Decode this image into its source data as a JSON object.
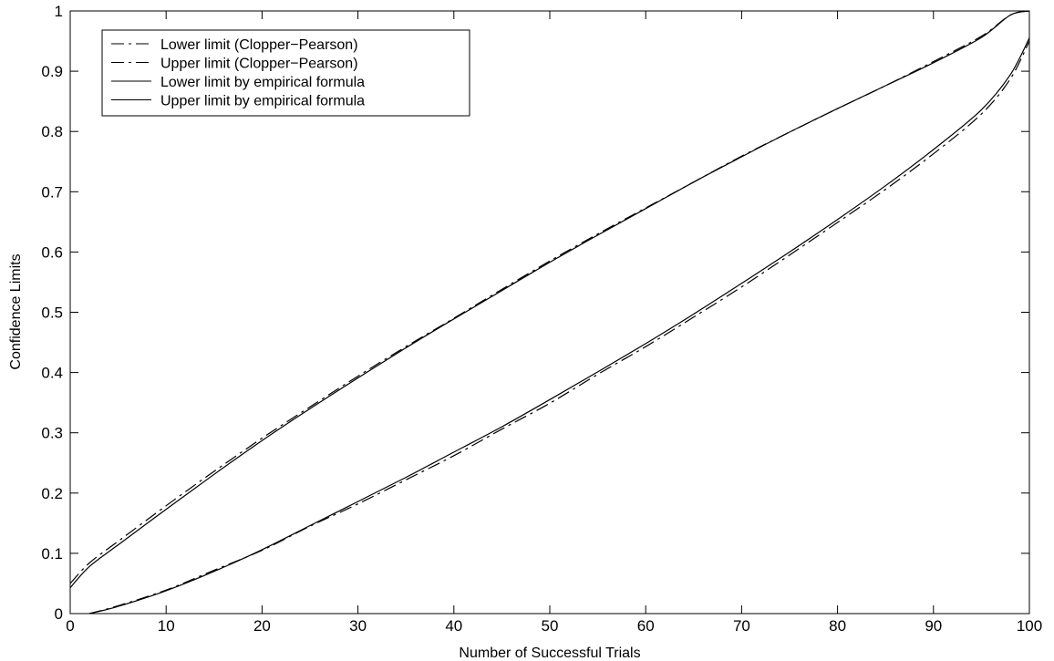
{
  "chart_data": {
    "type": "line",
    "title": "",
    "xlabel": "Number of Successful Trials",
    "ylabel": "Confidence Limits",
    "xlim": [
      0,
      100
    ],
    "ylim": [
      0,
      1
    ],
    "xticks": [
      0,
      10,
      20,
      30,
      40,
      50,
      60,
      70,
      80,
      90,
      100
    ],
    "yticks": [
      0,
      0.1,
      0.2,
      0.3,
      0.4,
      0.5,
      0.6,
      0.7,
      0.8,
      0.9,
      1
    ],
    "ytick_labels": [
      "0",
      "0.1",
      "0.2",
      "0.3",
      "0.4",
      "0.5",
      "0.6",
      "0.7",
      "0.8",
      "0.9",
      "1"
    ],
    "grid": false,
    "legend_position": "top-left",
    "x": [
      0,
      2,
      5,
      10,
      15,
      20,
      25,
      30,
      35,
      40,
      45,
      50,
      55,
      60,
      65,
      70,
      75,
      80,
      85,
      90,
      95,
      98,
      100
    ],
    "series": [
      {
        "name": "Lower limit (Clopper−Pearson)",
        "style": "dashdot",
        "color": "#000000",
        "values": [
          null,
          0.0,
          0.013,
          0.039,
          0.072,
          0.105,
          0.145,
          0.182,
          0.222,
          0.262,
          0.306,
          0.349,
          0.397,
          0.443,
          0.492,
          0.542,
          0.595,
          0.649,
          0.704,
          0.763,
          0.829,
          0.887,
          0.95
        ]
      },
      {
        "name": "Upper limit (Clopper−Pearson)",
        "style": "dashdot",
        "color": "#000000",
        "values": [
          0.05,
          0.084,
          0.12,
          0.179,
          0.236,
          0.291,
          0.343,
          0.394,
          0.443,
          0.49,
          0.538,
          0.585,
          0.63,
          0.673,
          0.716,
          0.759,
          0.799,
          0.838,
          0.876,
          0.916,
          0.958,
          0.993,
          1.0
        ]
      },
      {
        "name": "Lower limit by empirical formula",
        "style": "solid",
        "color": "#000000",
        "values": [
          null,
          0.0,
          0.012,
          0.038,
          0.07,
          0.106,
          0.146,
          0.186,
          0.226,
          0.268,
          0.31,
          0.355,
          0.401,
          0.448,
          0.497,
          0.548,
          0.6,
          0.654,
          0.71,
          0.77,
          0.836,
          0.894,
          0.955
        ]
      },
      {
        "name": "Upper limit by empirical formula",
        "style": "solid",
        "color": "#000000",
        "values": [
          0.043,
          0.078,
          0.114,
          0.173,
          0.231,
          0.287,
          0.34,
          0.391,
          0.441,
          0.489,
          0.536,
          0.583,
          0.628,
          0.672,
          0.716,
          0.758,
          0.799,
          0.838,
          0.876,
          0.914,
          0.956,
          0.993,
          1.0
        ]
      }
    ]
  }
}
